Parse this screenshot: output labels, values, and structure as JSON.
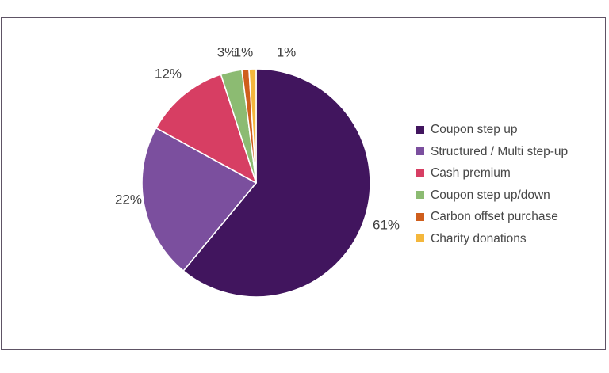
{
  "frame": {
    "border_color": "#5E5365",
    "background": "#ffffff"
  },
  "chart_data": {
    "type": "pie",
    "title": "",
    "legend_position": "right",
    "direction": "clockwise",
    "start_angle_deg": 0,
    "label_color": "#3F3F3F",
    "separator_color": "#ffffff",
    "categories": [
      "Coupon step up",
      "Structured / Multi step-up",
      "Cash premium",
      "Coupon step up/down",
      "Carbon offset purchase",
      "Charity donations"
    ],
    "values": [
      61,
      22,
      12,
      3,
      1,
      1
    ],
    "slices": [
      {
        "label": "Coupon step up",
        "value": 61,
        "pct_label": "61%",
        "color": "#41155E"
      },
      {
        "label": "Structured / Multi step-up",
        "value": 22,
        "pct_label": "22%",
        "color": "#7B4F9E"
      },
      {
        "label": "Cash premium",
        "value": 12,
        "pct_label": "12%",
        "color": "#D73E63"
      },
      {
        "label": "Coupon step up/down",
        "value": 3,
        "pct_label": "3%",
        "color": "#8CBB72"
      },
      {
        "label": "Carbon offset purchase",
        "value": 1,
        "pct_label": "1%",
        "color": "#CF5E1C"
      },
      {
        "label": "Charity donations",
        "value": 1,
        "pct_label": "1%",
        "color": "#F4B73C"
      }
    ]
  }
}
